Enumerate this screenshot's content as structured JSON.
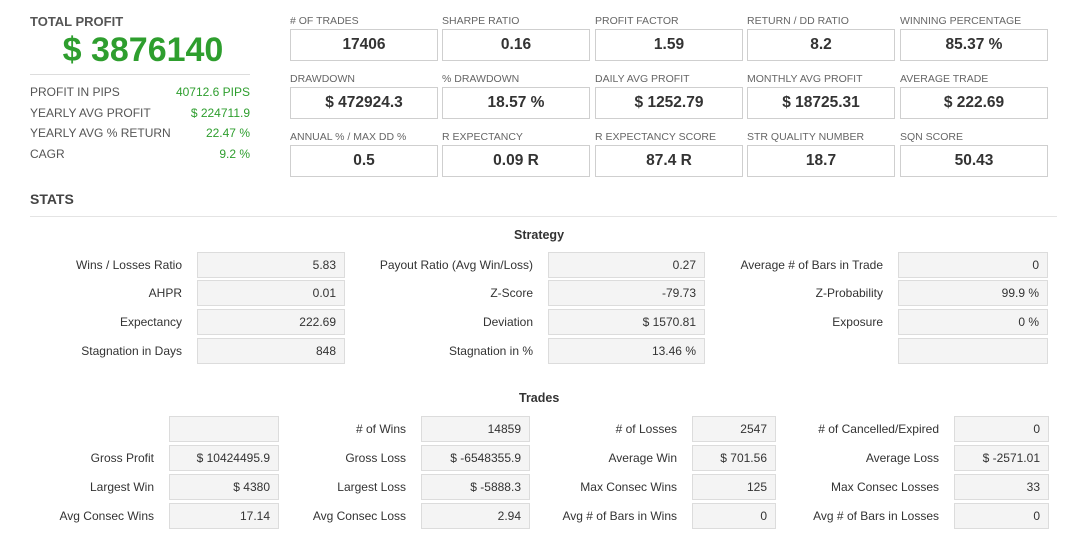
{
  "summary": {
    "total_profit_label": "TOTAL PROFIT",
    "total_profit_value": "$ 3876140",
    "rows": [
      {
        "label": "PROFIT IN PIPS",
        "value": "40712.6 PIPS"
      },
      {
        "label": "YEARLY AVG PROFIT",
        "value": "$ 224711.9"
      },
      {
        "label": "YEARLY AVG % RETURN",
        "value": "22.47 %"
      },
      {
        "label": "CAGR",
        "value": "9.2 %"
      }
    ]
  },
  "metrics": [
    {
      "label": "# OF TRADES",
      "value": "17406"
    },
    {
      "label": "SHARPE RATIO",
      "value": "0.16"
    },
    {
      "label": "PROFIT FACTOR",
      "value": "1.59"
    },
    {
      "label": "RETURN / DD RATIO",
      "value": "8.2"
    },
    {
      "label": "WINNING PERCENTAGE",
      "value": "85.37 %"
    },
    {
      "label": "DRAWDOWN",
      "value": "$ 472924.3"
    },
    {
      "label": "% DRAWDOWN",
      "value": "18.57 %"
    },
    {
      "label": "DAILY AVG PROFIT",
      "value": "$ 1252.79"
    },
    {
      "label": "MONTHLY AVG PROFIT",
      "value": "$ 18725.31"
    },
    {
      "label": "AVERAGE TRADE",
      "value": "$ 222.69"
    },
    {
      "label": "ANNUAL % / MAX DD %",
      "value": "0.5"
    },
    {
      "label": "R EXPECTANCY",
      "value": "0.09 R"
    },
    {
      "label": "R EXPECTANCY SCORE",
      "value": "87.4 R"
    },
    {
      "label": "STR QUALITY NUMBER",
      "value": "18.7"
    },
    {
      "label": "SQN SCORE",
      "value": "50.43"
    }
  ],
  "stats_title": "STATS",
  "strategy": {
    "title": "Strategy",
    "rows": [
      [
        {
          "label": "Wins / Losses Ratio",
          "value": "5.83"
        },
        {
          "label": "Payout Ratio (Avg Win/Loss)",
          "value": "0.27"
        },
        {
          "label": "Average # of Bars in Trade",
          "value": "0"
        }
      ],
      [
        {
          "label": "AHPR",
          "value": "0.01"
        },
        {
          "label": "Z-Score",
          "value": "-79.73"
        },
        {
          "label": "Z-Probability",
          "value": "99.9 %"
        }
      ],
      [
        {
          "label": "Expectancy",
          "value": "222.69"
        },
        {
          "label": "Deviation",
          "value": "$ 1570.81"
        },
        {
          "label": "Exposure",
          "value": "0 %"
        }
      ],
      [
        {
          "label": "Stagnation in Days",
          "value": "848"
        },
        {
          "label": "Stagnation in %",
          "value": "13.46 %"
        },
        {
          "label": "",
          "value": ""
        }
      ]
    ]
  },
  "trades": {
    "title": "Trades",
    "rows": [
      [
        {
          "label": "",
          "value": ""
        },
        {
          "label": "# of Wins",
          "value": "14859"
        },
        {
          "label": "# of Losses",
          "value": "2547"
        },
        {
          "label": "# of Cancelled/Expired",
          "value": "0"
        }
      ],
      [
        {
          "label": "Gross Profit",
          "value": "$ 10424495.9"
        },
        {
          "label": "Gross Loss",
          "value": "$ -6548355.9"
        },
        {
          "label": "Average Win",
          "value": "$ 701.56"
        },
        {
          "label": "Average Loss",
          "value": "$ -2571.01"
        }
      ],
      [
        {
          "label": "Largest Win",
          "value": "$ 4380"
        },
        {
          "label": "Largest Loss",
          "value": "$ -5888.3"
        },
        {
          "label": "Max Consec Wins",
          "value": "125"
        },
        {
          "label": "Max Consec Losses",
          "value": "33"
        }
      ],
      [
        {
          "label": "Avg Consec Wins",
          "value": "17.14"
        },
        {
          "label": "Avg Consec Loss",
          "value": "2.94"
        },
        {
          "label": "Avg # of Bars in Wins",
          "value": "0"
        },
        {
          "label": "Avg # of Bars in Losses",
          "value": "0"
        }
      ]
    ]
  }
}
